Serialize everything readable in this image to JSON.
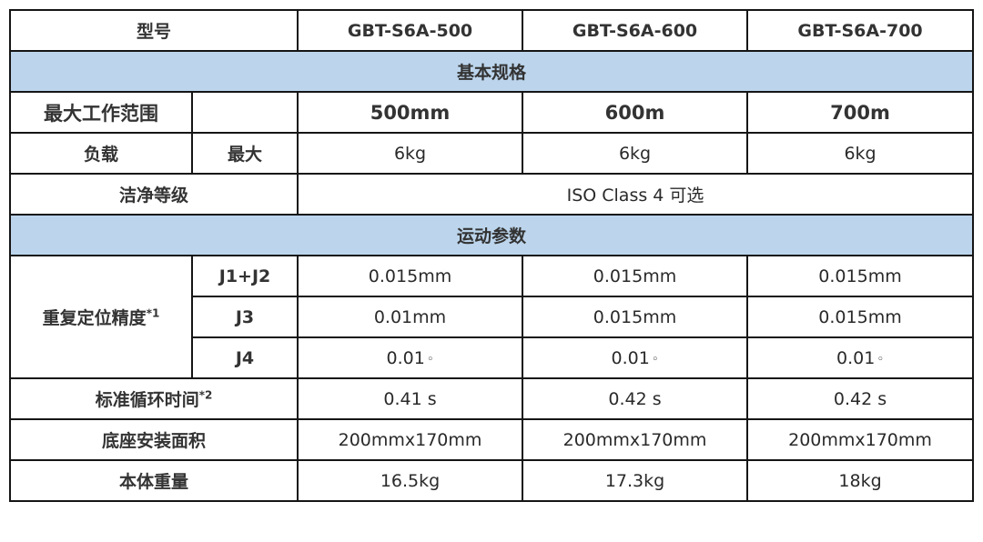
{
  "header": {
    "model_label": "型号",
    "models": [
      "GBT-S6A-500",
      "GBT-S6A-600",
      "GBT-S6A-700"
    ]
  },
  "sections": {
    "basic": "基本规格",
    "motion": "运动参数"
  },
  "rows": {
    "reach": {
      "label": "最大工作范围",
      "values": [
        "500mm",
        "600m",
        "700m"
      ]
    },
    "payload": {
      "label": "负载",
      "sub": "最大",
      "values": [
        "6kg",
        "6kg",
        "6kg"
      ]
    },
    "clean": {
      "label": "洁净等级",
      "value": "ISO Class 4 可选"
    },
    "repeat": {
      "label": "重复定位精度",
      "note": "*1",
      "j12": {
        "label": "J1+J2",
        "values": [
          "0.015mm",
          "0.015mm",
          "0.015mm"
        ]
      },
      "j3": {
        "label": "J3",
        "values": [
          "0.01mm",
          "0.015mm",
          "0.015mm"
        ]
      },
      "j4": {
        "label": "J4",
        "values": [
          "0.01",
          "0.01",
          "0.01"
        ],
        "unit": "◦"
      }
    },
    "cycle": {
      "label": "标准循环时间",
      "note": "*2",
      "values": [
        "0.41 s",
        "0.42 s",
        "0.42 s"
      ]
    },
    "base": {
      "label": "底座安装面积",
      "values": [
        "200mmx170mm",
        "200mmx170mm",
        "200mmx170mm"
      ]
    },
    "weight": {
      "label": "本体重量",
      "values": [
        "16.5kg",
        "17.3kg",
        "18kg"
      ]
    }
  },
  "colors": {
    "section_bg": "#bcd5ec",
    "border": "#151515"
  }
}
